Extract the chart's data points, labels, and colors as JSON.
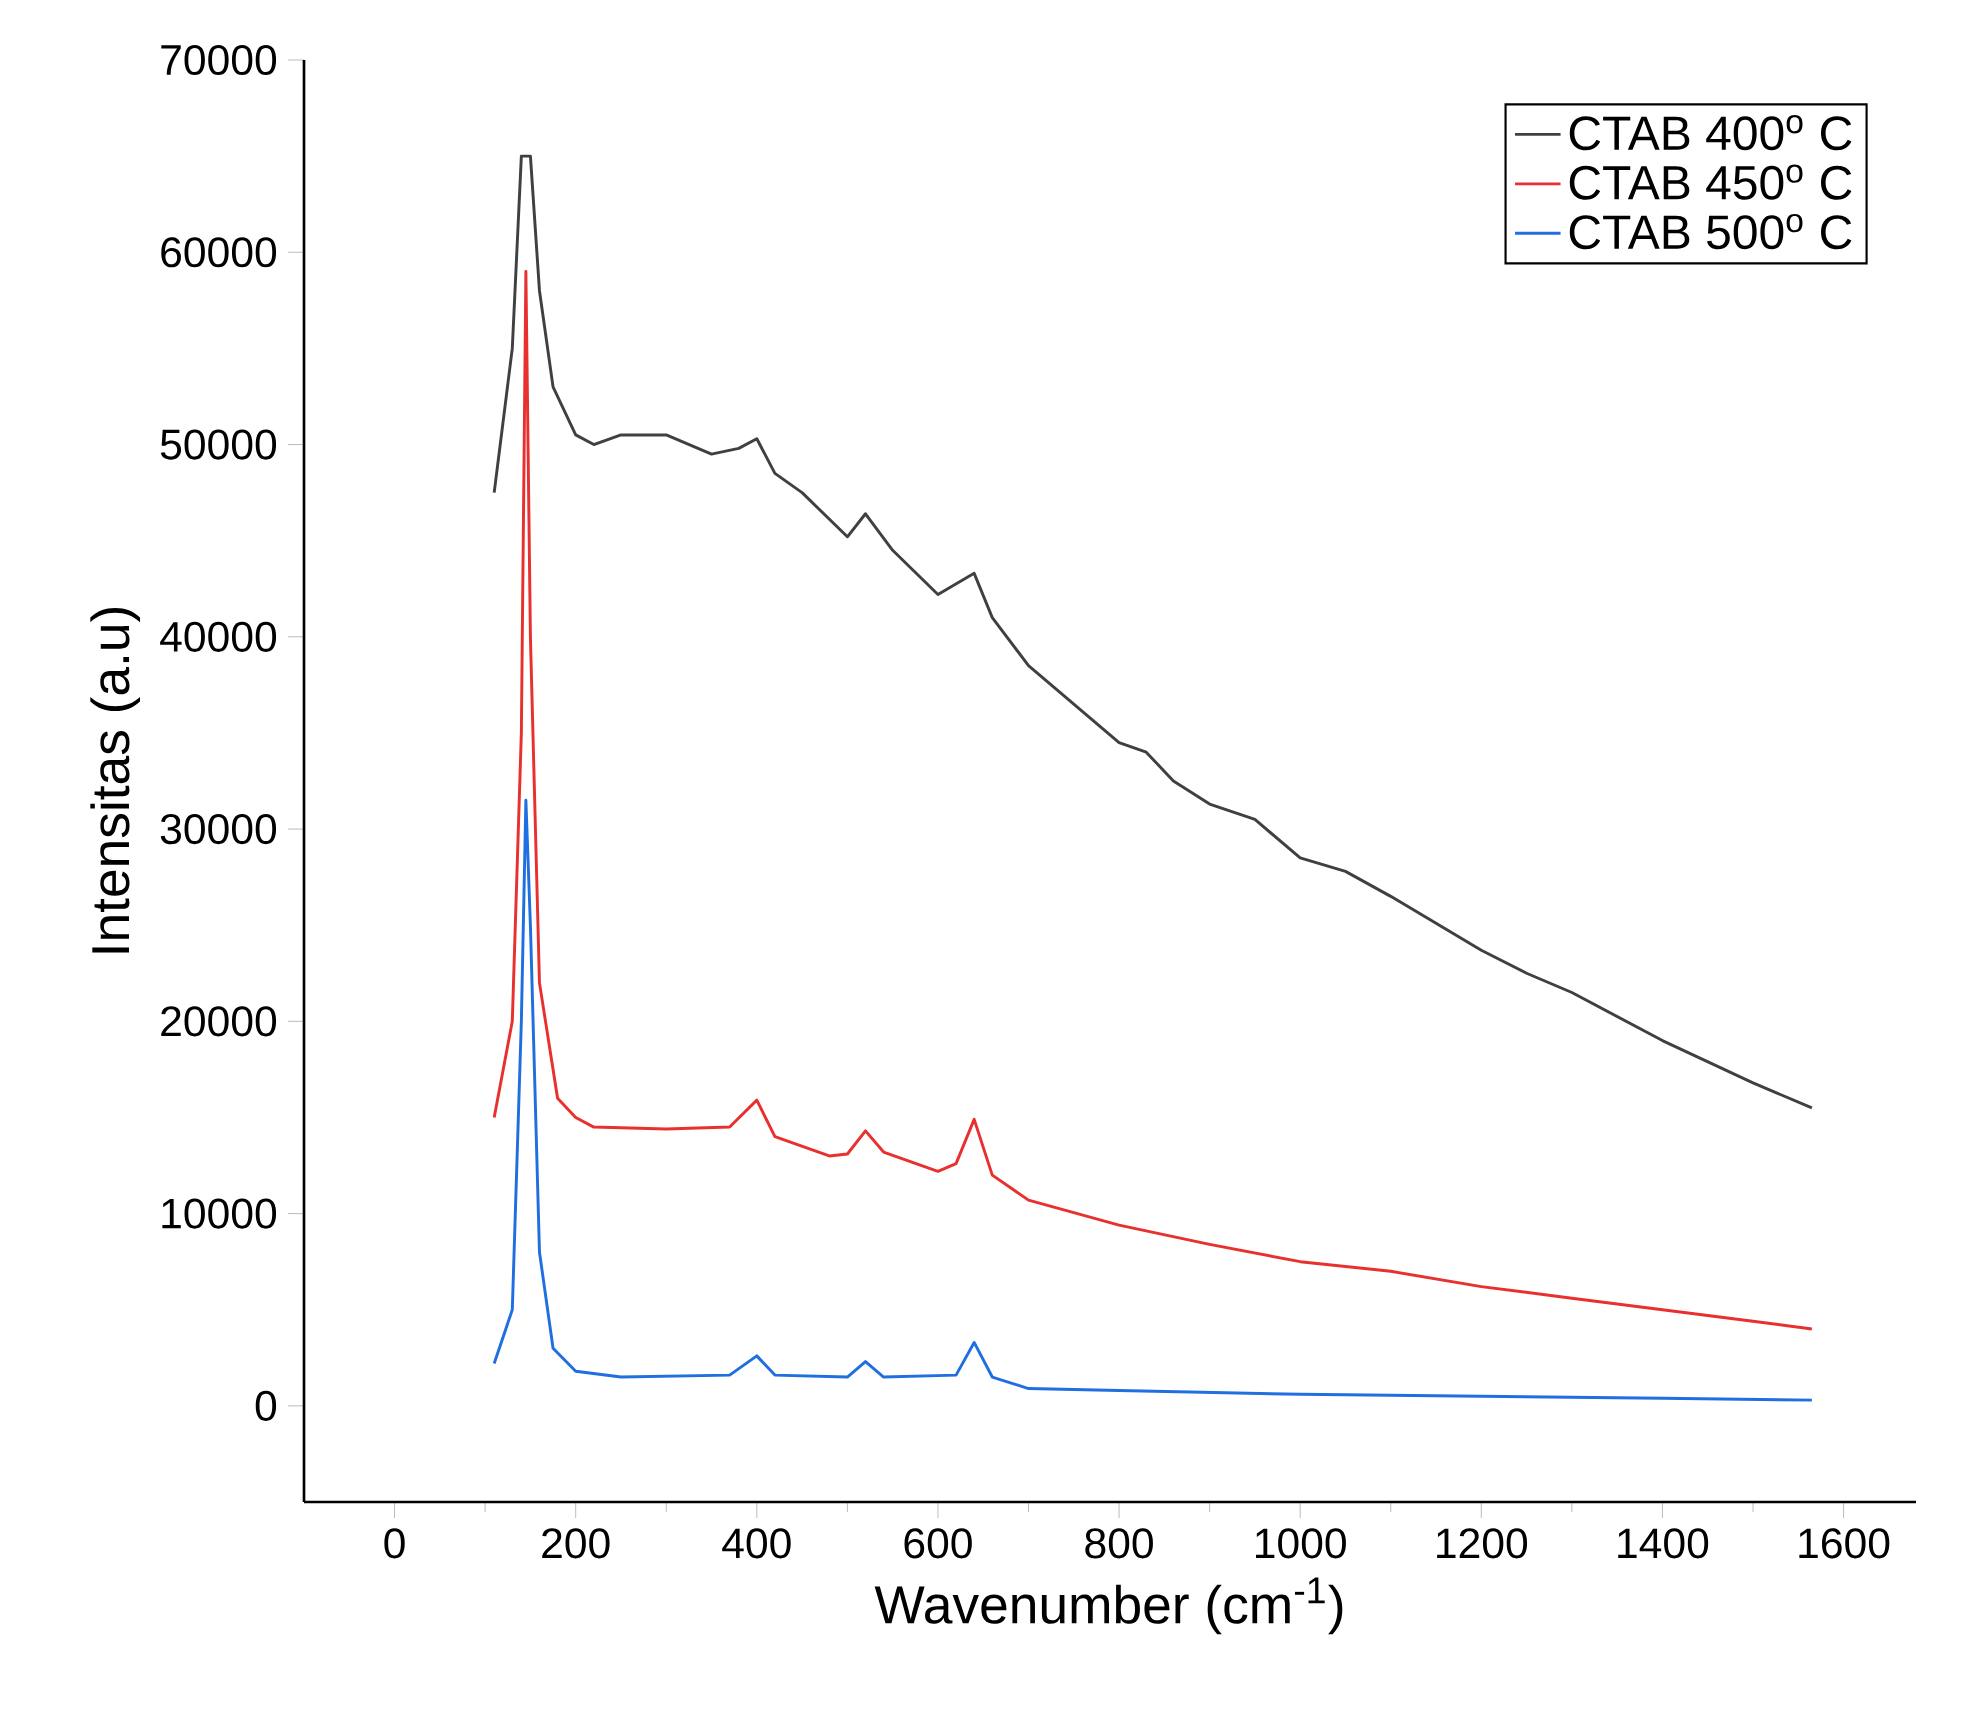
{
  "chart_data": {
    "type": "line",
    "xlabel": "Wavenumber (cm$^{-1}$)",
    "ylabel": "Intensitas (a.u)",
    "xlim": [
      -100,
      1680
    ],
    "ylim": [
      -5000,
      70000
    ],
    "xticks": [
      0,
      200,
      400,
      600,
      800,
      1000,
      1200,
      1400,
      1600
    ],
    "yticks": [
      0,
      10000,
      20000,
      30000,
      40000,
      50000,
      60000,
      70000
    ],
    "grid": false,
    "legend": "top right",
    "marker": "none",
    "line_style": "solid",
    "series": [
      {
        "name": "CTAB 400$^{o}$ C",
        "color": "#404040",
        "x": [
          110,
          130,
          140,
          150,
          160,
          175,
          200,
          220,
          250,
          300,
          350,
          380,
          400,
          420,
          450,
          500,
          520,
          550,
          600,
          640,
          660,
          700,
          750,
          800,
          830,
          860,
          900,
          950,
          1000,
          1050,
          1100,
          1200,
          1250,
          1300,
          1400,
          1500,
          1565
        ],
        "values": [
          47500,
          55000,
          65000,
          65000,
          58000,
          53000,
          50500,
          50000,
          50500,
          50500,
          49500,
          49800,
          50300,
          48500,
          47500,
          45200,
          46400,
          44500,
          42200,
          43300,
          41000,
          38500,
          36500,
          34500,
          34000,
          32500,
          31300,
          30500,
          28500,
          27800,
          26500,
          23700,
          22500,
          21500,
          19000,
          16800,
          15500
        ]
      },
      {
        "name": "CTAB 450$^{o}$ C",
        "color": "#e8302f",
        "x": [
          110,
          130,
          140,
          145,
          150,
          160,
          180,
          200,
          220,
          300,
          370,
          400,
          420,
          480,
          500,
          520,
          540,
          600,
          620,
          640,
          660,
          700,
          800,
          900,
          1000,
          1100,
          1200,
          1300,
          1400,
          1500,
          1565
        ],
        "values": [
          15000,
          20000,
          35000,
          59000,
          40000,
          22000,
          16000,
          15000,
          14500,
          14400,
          14500,
          15900,
          14000,
          13000,
          13100,
          14300,
          13200,
          12200,
          12600,
          14900,
          12000,
          10700,
          9400,
          8400,
          7500,
          7000,
          6200,
          5600,
          5000,
          4400,
          4000
        ]
      },
      {
        "name": "CTAB 500$^{o}$ C",
        "color": "#1f6fe0",
        "x": [
          110,
          130,
          140,
          145,
          150,
          160,
          175,
          200,
          250,
          370,
          400,
          420,
          500,
          520,
          540,
          620,
          640,
          660,
          700,
          800,
          1000,
          1200,
          1400,
          1565
        ],
        "values": [
          2200,
          5000,
          20000,
          31500,
          25000,
          8000,
          3000,
          1800,
          1500,
          1600,
          2600,
          1600,
          1500,
          2300,
          1500,
          1600,
          3300,
          1500,
          900,
          800,
          600,
          500,
          400,
          300
        ]
      }
    ]
  }
}
